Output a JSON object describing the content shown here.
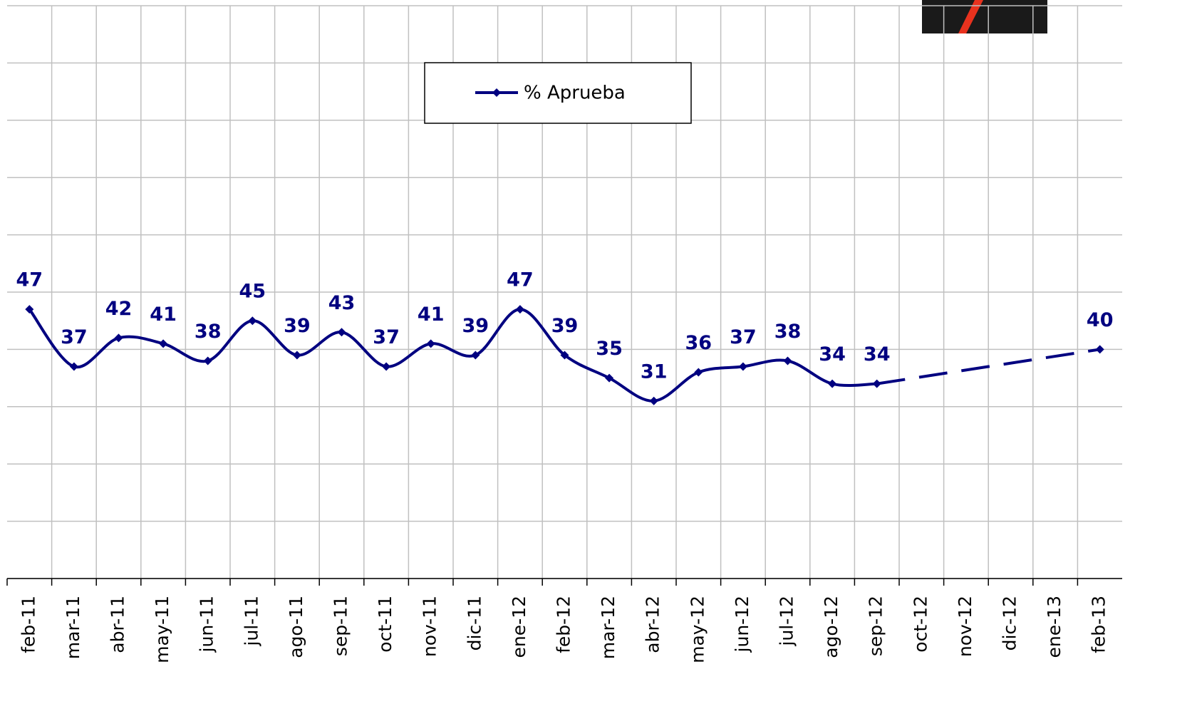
{
  "chart_data": {
    "type": "line",
    "categories": [
      "feb-11",
      "mar-11",
      "abr-11",
      "may-11",
      "jun-11",
      "jul-11",
      "ago-11",
      "sep-11",
      "oct-11",
      "nov-11",
      "dic-11",
      "ene-12",
      "feb-12",
      "mar-12",
      "abr-12",
      "may-12",
      "jun-12",
      "jul-12",
      "ago-12",
      "sep-12",
      "oct-12",
      "nov-12",
      "dic-12",
      "ene-13",
      "feb-13"
    ],
    "series": [
      {
        "name": "% Aprueba",
        "color": "#000080",
        "values": [
          47,
          37,
          42,
          41,
          38,
          45,
          39,
          43,
          37,
          41,
          39,
          47,
          39,
          35,
          31,
          36,
          37,
          38,
          34,
          34,
          null,
          null,
          null,
          null,
          40
        ]
      }
    ],
    "ylim": [
      0,
      100
    ],
    "yticks": [
      0,
      10,
      20,
      30,
      40,
      50,
      60,
      70,
      80,
      90,
      100
    ],
    "grid": true
  }
}
